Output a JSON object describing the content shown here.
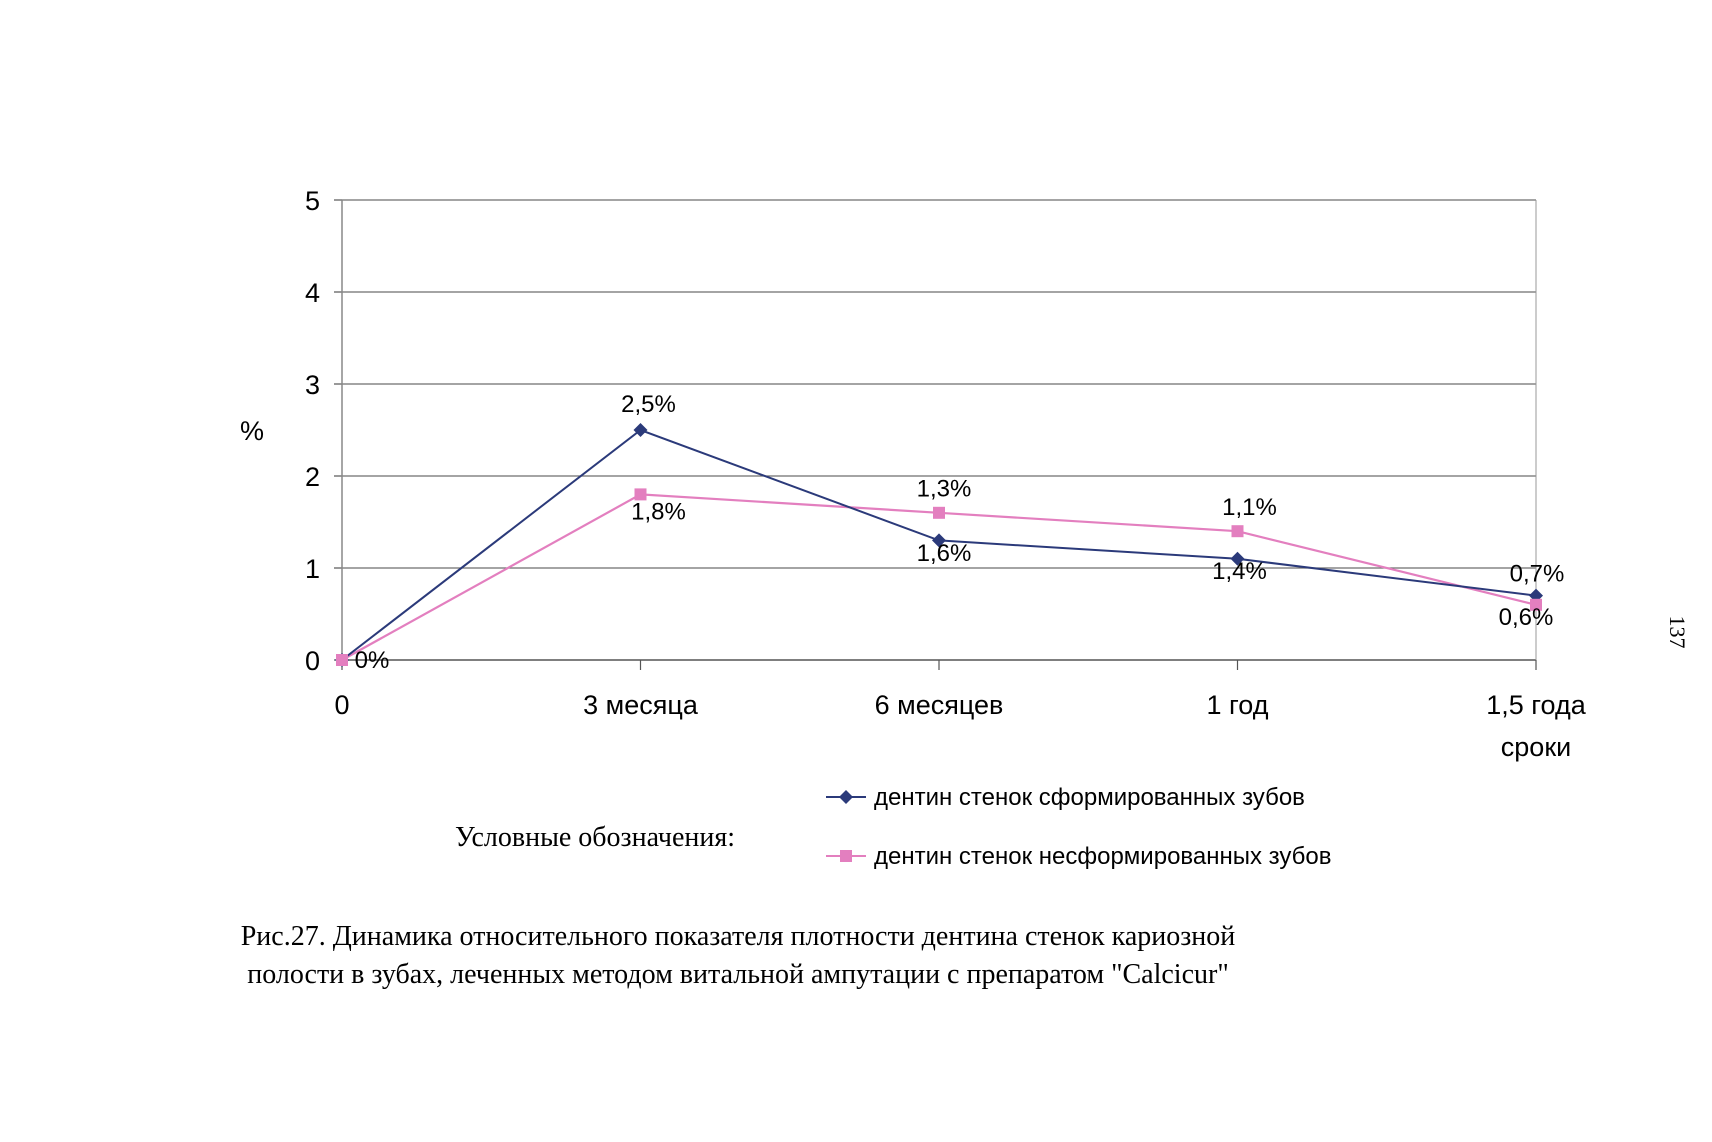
{
  "chart_data": {
    "type": "line",
    "categories": [
      "0",
      "3 месяца",
      "6 месяцев",
      "1 год",
      "1,5 года"
    ],
    "ylabel": "%",
    "xlabel": "сроки",
    "ylim": [
      0,
      5
    ],
    "yticks": [
      0,
      1,
      2,
      3,
      4,
      5
    ],
    "grid": true,
    "series": [
      {
        "name": "дентин стенок сформированных зубов",
        "color": "#2b3a7a",
        "marker": "diamond",
        "values": [
          0,
          2.5,
          1.3,
          1.1,
          0.7
        ],
        "labels": [
          "",
          "2,5%",
          "1,3%",
          "1,1%",
          "0,7%"
        ]
      },
      {
        "name": "дентин стенок несформированных зубов",
        "color": "#e37fbf",
        "marker": "square",
        "values": [
          0,
          1.8,
          1.6,
          1.4,
          0.6
        ],
        "labels": [
          "0%",
          "1,8%",
          "1,6%",
          "1,4%",
          "0,6%"
        ]
      }
    ]
  },
  "legend_caption": "Условные обозначения:",
  "figure_caption_line1": "Рис.27.  Динамика относительного показателя плотности дентина стенок кариозной",
  "figure_caption_line2": "полости в зубах, леченных методом витальной ампутации с препаратом \"Calcicur\"",
  "page_number": "137"
}
